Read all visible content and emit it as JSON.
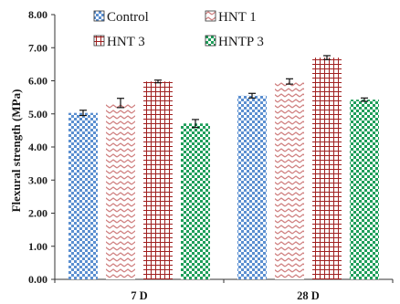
{
  "chart_data": {
    "type": "bar",
    "ylabel": "Flexural strength (MPa)",
    "xlabel": "",
    "ylim": [
      0,
      8
    ],
    "y_ticks": [
      "0.00",
      "1.00",
      "2.00",
      "3.00",
      "4.00",
      "5.00",
      "6.00",
      "7.00",
      "8.00"
    ],
    "categories": [
      "7 D",
      "28 D"
    ],
    "grid": false,
    "legend_position": "top-left, inside plot",
    "error_bars": true,
    "series": [
      {
        "name": "Control",
        "values": [
          5.03,
          5.55
        ],
        "errors": [
          0.08,
          0.07
        ],
        "color": "#5b8fd0",
        "pattern": "checker"
      },
      {
        "name": "HNT 1",
        "values": [
          5.33,
          5.98
        ],
        "errors": [
          0.14,
          0.08
        ],
        "color": "#d08080",
        "pattern": "zigzag"
      },
      {
        "name": "HNT 3",
        "values": [
          5.98,
          6.7
        ],
        "errors": [
          0.04,
          0.06
        ],
        "color": "#a02020",
        "pattern": "grid"
      },
      {
        "name": "HNTP 3",
        "values": [
          4.71,
          5.43
        ],
        "errors": [
          0.12,
          0.05
        ],
        "color": "#1e9e5a",
        "pattern": "checker"
      }
    ]
  }
}
